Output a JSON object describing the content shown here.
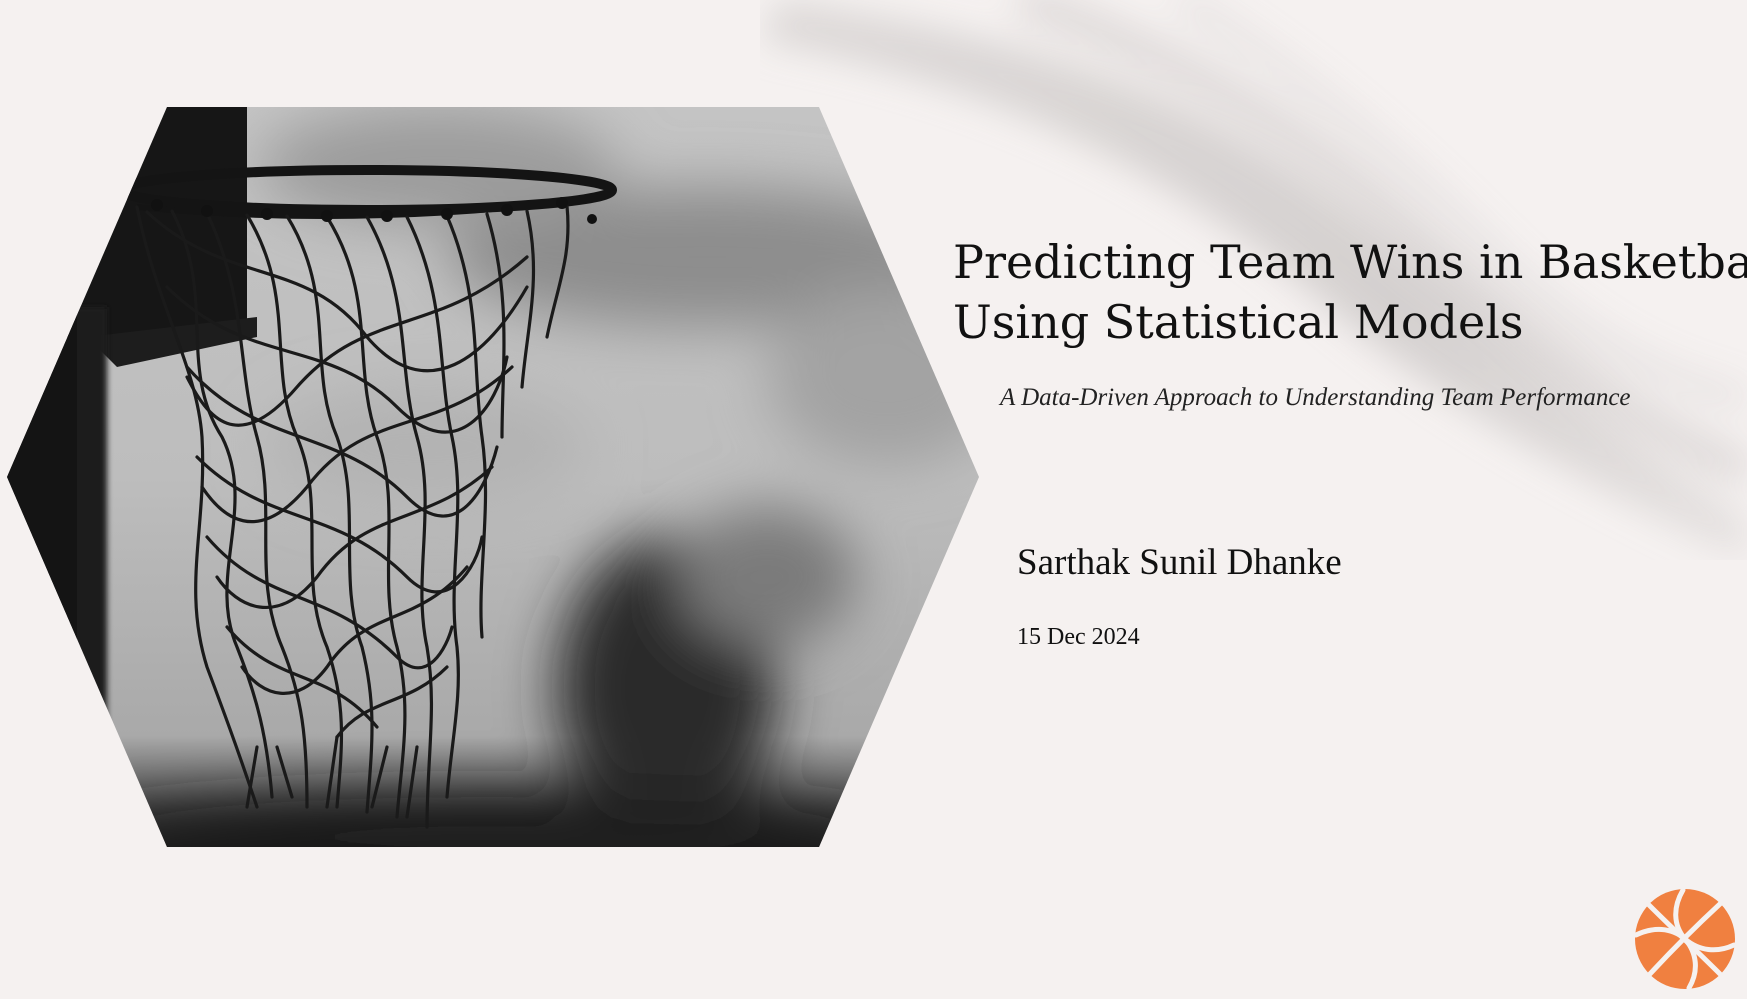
{
  "slide": {
    "title_line1": "Predicting Team Wins in Basketball",
    "title_line2": "Using Statistical Models",
    "subtitle": "A Data-Driven Approach to Understanding Team Performance",
    "author": "Sarthak Sunil Dhanke",
    "date": "15 Dec 2024"
  },
  "images": {
    "hero": "basketball-hoop-net-photo",
    "background": "blurred-net-swoosh",
    "corner": "basketball-icon"
  },
  "colors": {
    "background": "#f5f1f0",
    "accent": "#f08040",
    "text": "#111111"
  }
}
